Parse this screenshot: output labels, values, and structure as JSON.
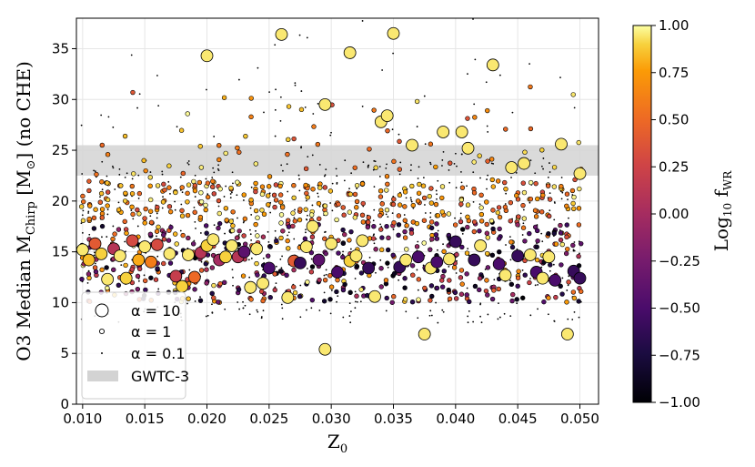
{
  "chart_data": {
    "type": "scatter",
    "xlabel": "Z",
    "xlabel_sub": "0",
    "ylabel": "O3 Median M",
    "ylabel_sub": "Chirp",
    "ylabel_unit": " [M",
    "ylabel_unit_sub": "⊙",
    "ylabel_tail": "] (no CHE)",
    "xlim": [
      0.0095,
      0.0515
    ],
    "ylim": [
      0,
      38
    ],
    "x_ticks": [
      0.01,
      0.015,
      0.02,
      0.025,
      0.03,
      0.035,
      0.04,
      0.045,
      0.05
    ],
    "x_tick_labels": [
      "0.010",
      "0.015",
      "0.020",
      "0.025",
      "0.030",
      "0.035",
      "0.040",
      "0.045",
      "0.050"
    ],
    "y_ticks": [
      0,
      5,
      10,
      15,
      20,
      25,
      30,
      35
    ],
    "y_tick_labels": [
      "0",
      "5",
      "10",
      "15",
      "20",
      "25",
      "30",
      "35"
    ],
    "gwtc3_band": [
      22.5,
      25.5
    ],
    "colorbar": {
      "label": "Log",
      "label_sub": "10",
      "label_tail": " f",
      "label_tail_sub": "WR",
      "range": [
        -1.0,
        1.0
      ],
      "ticks": [
        1.0,
        0.75,
        0.5,
        0.25,
        0.0,
        -0.25,
        -0.5,
        -0.75,
        -1.0
      ],
      "tick_labels": [
        "1.00",
        "0.75",
        "0.50",
        "0.25",
        "0.00",
        "−0.25",
        "−0.50",
        "−0.75",
        "−1.00"
      ],
      "colormap": "inferno"
    },
    "legend": {
      "placement": "lower-left",
      "entries": [
        {
          "label": "α = 10",
          "marker": "large-circle"
        },
        {
          "label": "α = 1",
          "marker": "small-circle"
        },
        {
          "label": "α = 0.1",
          "marker": "dot"
        },
        {
          "label": "GWTC-3",
          "marker": "band"
        }
      ]
    },
    "series": [
      {
        "alpha": 10,
        "points": [
          [
            0.01,
            15.2,
            0.95
          ],
          [
            0.0105,
            14.2,
            0.85
          ],
          [
            0.011,
            15.8,
            0.4
          ],
          [
            0.0115,
            14.8,
            0.9
          ],
          [
            0.012,
            12.3,
            0.95
          ],
          [
            0.0125,
            15.3,
            0.1
          ],
          [
            0.013,
            14.6,
            0.95
          ],
          [
            0.0135,
            12.4,
            0.9
          ],
          [
            0.014,
            16.1,
            0.3
          ],
          [
            0.0145,
            14.2,
            0.8
          ],
          [
            0.015,
            15.5,
            0.95
          ],
          [
            0.0155,
            14.0,
            0.6
          ],
          [
            0.016,
            15.7,
            0.3
          ],
          [
            0.017,
            14.8,
            0.95
          ],
          [
            0.0175,
            12.6,
            0.2
          ],
          [
            0.018,
            11.6,
            0.9
          ],
          [
            0.0185,
            14.7,
            0.95
          ],
          [
            0.019,
            12.5,
            0.5
          ],
          [
            0.0195,
            14.9,
            0.1
          ],
          [
            0.02,
            34.3,
            0.95
          ],
          [
            0.02,
            15.6,
            0.9
          ],
          [
            0.0205,
            16.2,
            0.95
          ],
          [
            0.021,
            14.2,
            0.0
          ],
          [
            0.0215,
            14.5,
            0.9
          ],
          [
            0.022,
            15.6,
            0.95
          ],
          [
            0.0225,
            14.5,
            0.1
          ],
          [
            0.023,
            15.0,
            -0.4
          ],
          [
            0.0235,
            11.5,
            0.95
          ],
          [
            0.024,
            15.3,
            0.95
          ],
          [
            0.0245,
            11.9,
            0.95
          ],
          [
            0.025,
            13.4,
            -0.5
          ],
          [
            0.026,
            36.4,
            0.95
          ],
          [
            0.0265,
            10.5,
            0.95
          ],
          [
            0.027,
            14.1,
            0.4
          ],
          [
            0.0275,
            13.9,
            -0.6
          ],
          [
            0.028,
            15.5,
            0.95
          ],
          [
            0.0285,
            17.5,
            0.95
          ],
          [
            0.029,
            14.2,
            -0.4
          ],
          [
            0.0295,
            29.5,
            0.95
          ],
          [
            0.0295,
            5.4,
            0.95
          ],
          [
            0.03,
            15.8,
            0.95
          ],
          [
            0.0305,
            13.0,
            -0.5
          ],
          [
            0.0315,
            34.6,
            0.95
          ],
          [
            0.0315,
            14.1,
            0.9
          ],
          [
            0.032,
            14.6,
            0.95
          ],
          [
            0.0325,
            16.1,
            0.95
          ],
          [
            0.033,
            13.4,
            -0.6
          ],
          [
            0.0335,
            10.6,
            0.95
          ],
          [
            0.034,
            27.8,
            0.95
          ],
          [
            0.0345,
            28.4,
            0.95
          ],
          [
            0.035,
            36.5,
            0.95
          ],
          [
            0.0355,
            13.5,
            -0.6
          ],
          [
            0.036,
            14.2,
            0.95
          ],
          [
            0.0365,
            25.5,
            0.95
          ],
          [
            0.037,
            14.5,
            -0.5
          ],
          [
            0.0375,
            6.9,
            0.95
          ],
          [
            0.038,
            13.4,
            0.95
          ],
          [
            0.0385,
            14.0,
            -0.5
          ],
          [
            0.039,
            26.8,
            0.95
          ],
          [
            0.0395,
            14.3,
            0.95
          ],
          [
            0.04,
            16.0,
            -0.6
          ],
          [
            0.0405,
            26.8,
            0.95
          ],
          [
            0.041,
            25.2,
            0.95
          ],
          [
            0.0415,
            14.2,
            -0.6
          ],
          [
            0.042,
            15.6,
            0.95
          ],
          [
            0.043,
            33.4,
            0.95
          ],
          [
            0.0435,
            13.8,
            -0.5
          ],
          [
            0.044,
            12.7,
            0.95
          ],
          [
            0.0445,
            23.3,
            0.95
          ],
          [
            0.045,
            14.6,
            -0.6
          ],
          [
            0.0455,
            23.7,
            0.95
          ],
          [
            0.046,
            14.7,
            0.95
          ],
          [
            0.0465,
            13.0,
            -0.5
          ],
          [
            0.047,
            12.4,
            0.95
          ],
          [
            0.0475,
            14.5,
            0.95
          ],
          [
            0.048,
            12.2,
            -0.5
          ],
          [
            0.0485,
            25.6,
            0.95
          ],
          [
            0.049,
            6.9,
            0.95
          ],
          [
            0.0495,
            13.1,
            -0.6
          ],
          [
            0.05,
            22.7,
            0.95
          ],
          [
            0.05,
            12.4,
            -0.6
          ]
        ]
      }
    ]
  }
}
